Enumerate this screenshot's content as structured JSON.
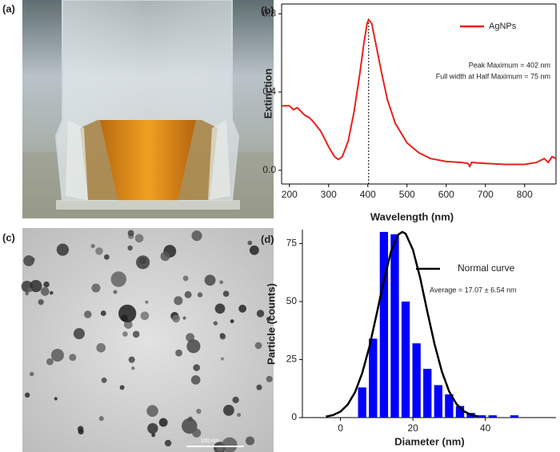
{
  "panel_labels": [
    "(a)",
    "(b)",
    "(c)",
    "(d)"
  ],
  "scale_bar_label": "100 nm",
  "chart_data": [
    {
      "type": "line",
      "xlabel": "Wavelength (nm)",
      "ylabel": "Extinction",
      "x": [
        180,
        200,
        210,
        220,
        230,
        240,
        250,
        260,
        280,
        300,
        315,
        325,
        335,
        350,
        365,
        380,
        390,
        398,
        402,
        410,
        420,
        435,
        450,
        470,
        500,
        530,
        560,
        600,
        640,
        655,
        660,
        665,
        700,
        750,
        800,
        830,
        850,
        860,
        870,
        880
      ],
      "series": [
        {
          "name": "AgNPs",
          "color": "#e8211b",
          "values": [
            0.33,
            0.33,
            0.31,
            0.32,
            0.3,
            0.28,
            0.27,
            0.25,
            0.2,
            0.12,
            0.07,
            0.055,
            0.07,
            0.15,
            0.3,
            0.5,
            0.65,
            0.75,
            0.77,
            0.75,
            0.65,
            0.5,
            0.36,
            0.24,
            0.14,
            0.09,
            0.06,
            0.045,
            0.04,
            0.035,
            0.02,
            0.04,
            0.035,
            0.03,
            0.03,
            0.04,
            0.06,
            0.04,
            0.07,
            0.06
          ]
        }
      ],
      "vline": 402,
      "annotations": [
        "Peak Maximum  = 402 nm",
        "Full width at Half Maximum = 75 nm"
      ],
      "xlim": [
        180,
        880
      ],
      "xticks": [
        200,
        300,
        400,
        500,
        600,
        700,
        800
      ],
      "ylim": [
        -0.07,
        0.85
      ],
      "yticks": [
        {
          "value": 0,
          "label": "0.0"
        },
        0.4,
        0.8
      ]
    },
    {
      "type": "histogram",
      "xlabel": "Diameter (nm)",
      "ylabel": "Particle (counts)",
      "bins": [
        4.5,
        7.5,
        10.5,
        13.5,
        16.5,
        19.5,
        22.5,
        25.5,
        28.5,
        31.5,
        34.5,
        37.5,
        40.5,
        43.5,
        46.5,
        49.5
      ],
      "counts": [
        13,
        34,
        80,
        79,
        50,
        32,
        21,
        14,
        10,
        5,
        2,
        1,
        1,
        0,
        1
      ],
      "color": "#0000ff",
      "curve": {
        "name": "Normal curve",
        "color": "#000000",
        "x": [
          -4,
          -2,
          0,
          2,
          4,
          6,
          8,
          10,
          12,
          14,
          16,
          17.07,
          18,
          20,
          22,
          24,
          26,
          28,
          30,
          32,
          34,
          36,
          38
        ],
        "values": [
          0.45,
          1.1,
          2.6,
          5.6,
          10.9,
          19.1,
          30.6,
          44.6,
          59.2,
          71.7,
          78.9,
          80,
          79.2,
          72.4,
          60.2,
          45.6,
          31.5,
          19.8,
          11.3,
          5.9,
          2.8,
          1.2,
          0.5
        ]
      },
      "annotations": [
        "Average = 17.07 ± 6.54 nm"
      ],
      "xlim": [
        -10.5,
        59.5
      ],
      "xticks": [
        0,
        20,
        40
      ],
      "ylim": [
        0,
        81
      ],
      "yticks": [
        0,
        25,
        50,
        75
      ]
    }
  ]
}
